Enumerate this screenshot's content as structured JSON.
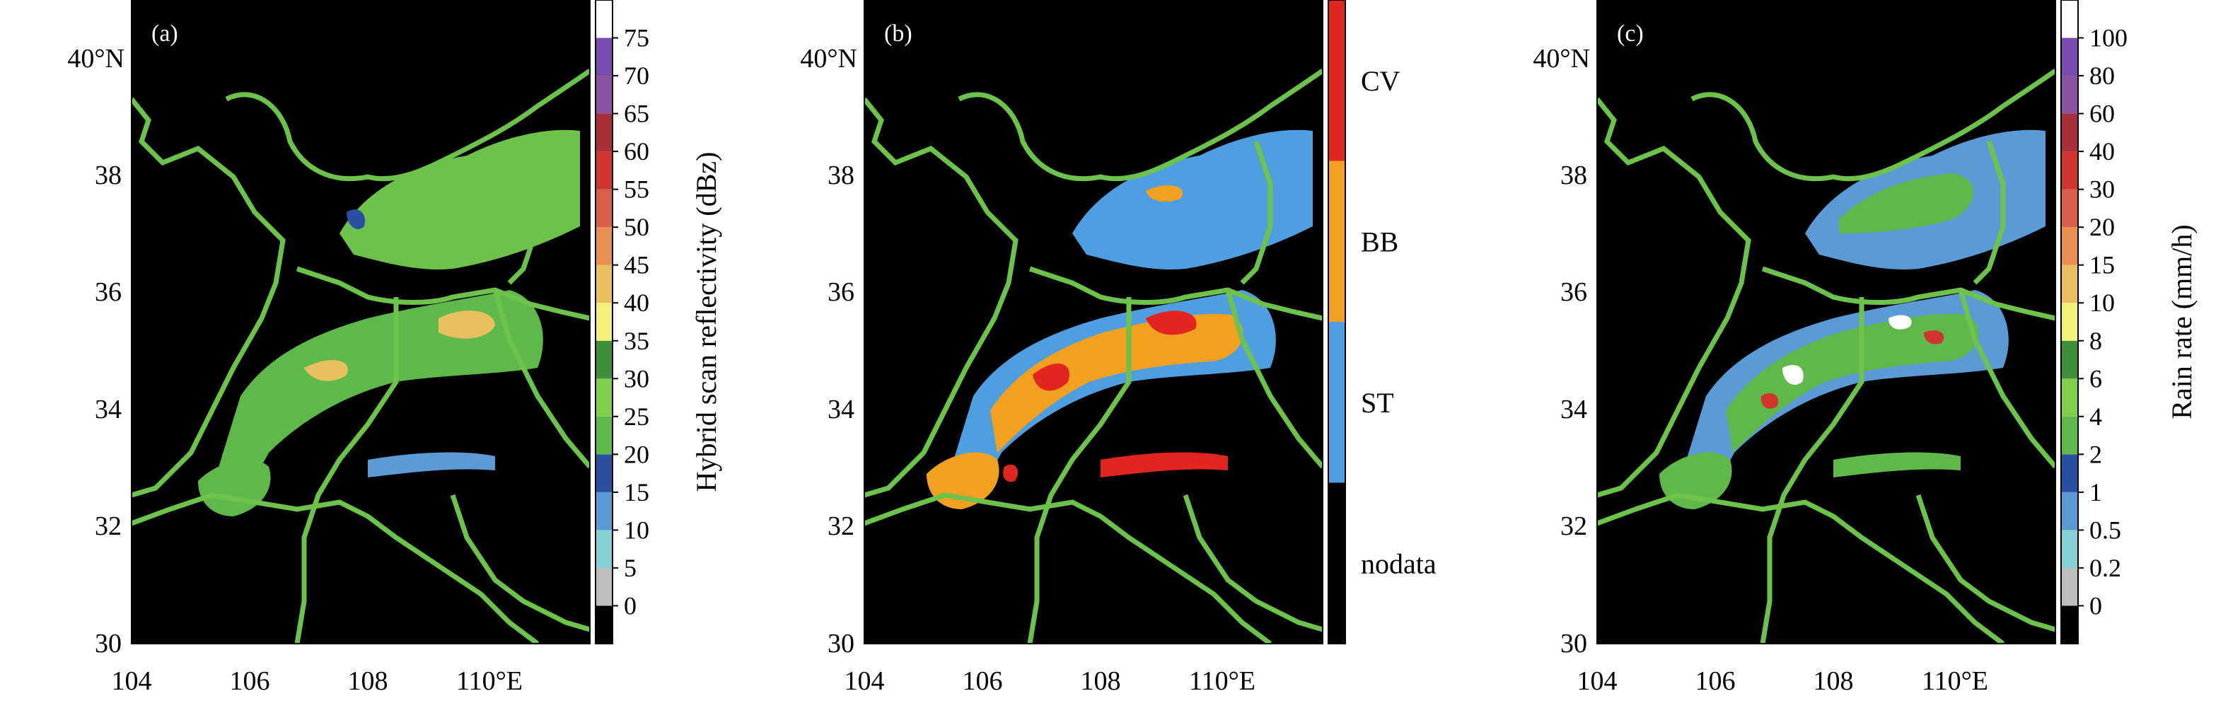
{
  "axes": {
    "lat_ticks": [
      "30",
      "32",
      "34",
      "36",
      "38",
      "40°N"
    ],
    "lon_ticks": [
      "104",
      "106",
      "108",
      "110°E"
    ]
  },
  "panels": [
    {
      "label": "(a)",
      "colorbar_title": "Hybrid scan reflectivity (dBz)",
      "colorbar_ticks": [
        "0",
        "5",
        "10",
        "15",
        "20",
        "25",
        "30",
        "35",
        "40",
        "45",
        "50",
        "55",
        "60",
        "65",
        "70",
        "75"
      ]
    },
    {
      "label": "(b)",
      "colorbar_categories": [
        "nodata",
        "ST",
        "BB",
        "CV"
      ]
    },
    {
      "label": "(c)",
      "colorbar_title": "Rain rate (mm/h)",
      "colorbar_ticks": [
        "0",
        "0.2",
        "0.5",
        "1",
        "2",
        "4",
        "6",
        "8",
        "10",
        "15",
        "20",
        "30",
        "40",
        "60",
        "80",
        "100"
      ]
    }
  ],
  "colors": {
    "background": "#000000",
    "boundaries": "#6cc24a",
    "scale_a": [
      "#000000",
      "#bdbdbd",
      "#84d0d4",
      "#5b9bd5",
      "#2b4fa0",
      "#5fb84a",
      "#7ed04a",
      "#3f8f3a",
      "#f3f07a",
      "#e8c060",
      "#e89050",
      "#d8604a",
      "#d0342f",
      "#a83038",
      "#8a52a0",
      "#7a4cb0",
      "#ffffff"
    ],
    "scale_b": [
      "#000000",
      "#4f9fe0",
      "#f2a020",
      "#e0261f"
    ],
    "scale_c": [
      "#000000",
      "#bdbdbd",
      "#84d0d4",
      "#5b9bd5",
      "#2b4fa0",
      "#5fb84a",
      "#7ed04a",
      "#3f8f3a",
      "#f3f07a",
      "#e8c060",
      "#e89050",
      "#d8604a",
      "#d0342f",
      "#a83038",
      "#8a52a0",
      "#7a4cb0",
      "#ffffff"
    ]
  }
}
